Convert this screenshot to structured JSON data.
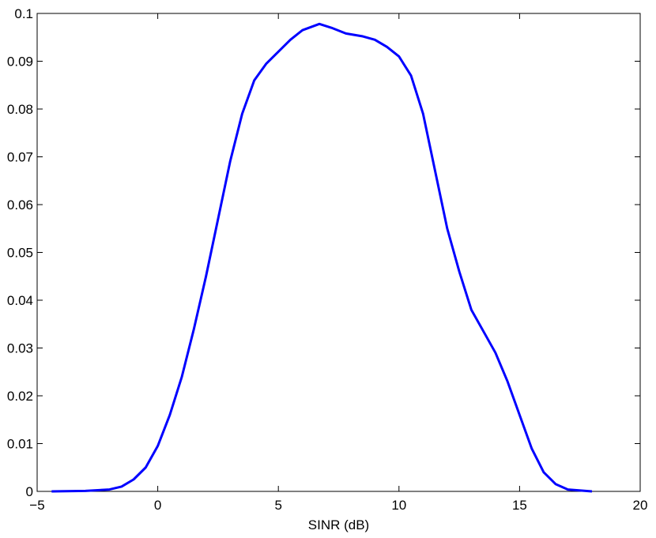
{
  "chart_data": {
    "type": "line",
    "xlabel": "SINR (dB)",
    "x": [
      -4.4,
      -3,
      -2,
      -1.5,
      -1,
      -0.5,
      0,
      0.5,
      1,
      1.5,
      2,
      2.5,
      3,
      3.5,
      4,
      4.5,
      5,
      5.5,
      6,
      6.7,
      7.2,
      7.8,
      8.5,
      9,
      9.5,
      10,
      10.5,
      11,
      11.5,
      12,
      12.5,
      13,
      13.5,
      14,
      14.5,
      15,
      15.5,
      16,
      16.5,
      17,
      18
    ],
    "series": [
      {
        "color": "#0000ff",
        "values": [
          0,
          0.0001,
          0.0004,
          0.001,
          0.0025,
          0.005,
          0.0095,
          0.016,
          0.024,
          0.034,
          0.045,
          0.057,
          0.069,
          0.079,
          0.086,
          0.0895,
          0.092,
          0.0945,
          0.0965,
          0.0978,
          0.097,
          0.0958,
          0.0952,
          0.0945,
          0.093,
          0.091,
          0.087,
          0.079,
          0.067,
          0.055,
          0.046,
          0.038,
          0.0335,
          0.029,
          0.023,
          0.016,
          0.009,
          0.004,
          0.0015,
          0.0004,
          0
        ]
      }
    ],
    "xlim": [
      -5,
      20
    ],
    "xticks": [
      {
        "value": -5,
        "label": "−5"
      },
      0,
      5,
      10,
      15,
      20
    ],
    "ylim": [
      0,
      0.1
    ],
    "yticks": [
      0,
      0.01,
      0.02,
      0.03,
      0.04,
      0.05,
      0.06,
      0.07,
      0.08,
      0.09,
      0.1
    ],
    "grid": false
  }
}
